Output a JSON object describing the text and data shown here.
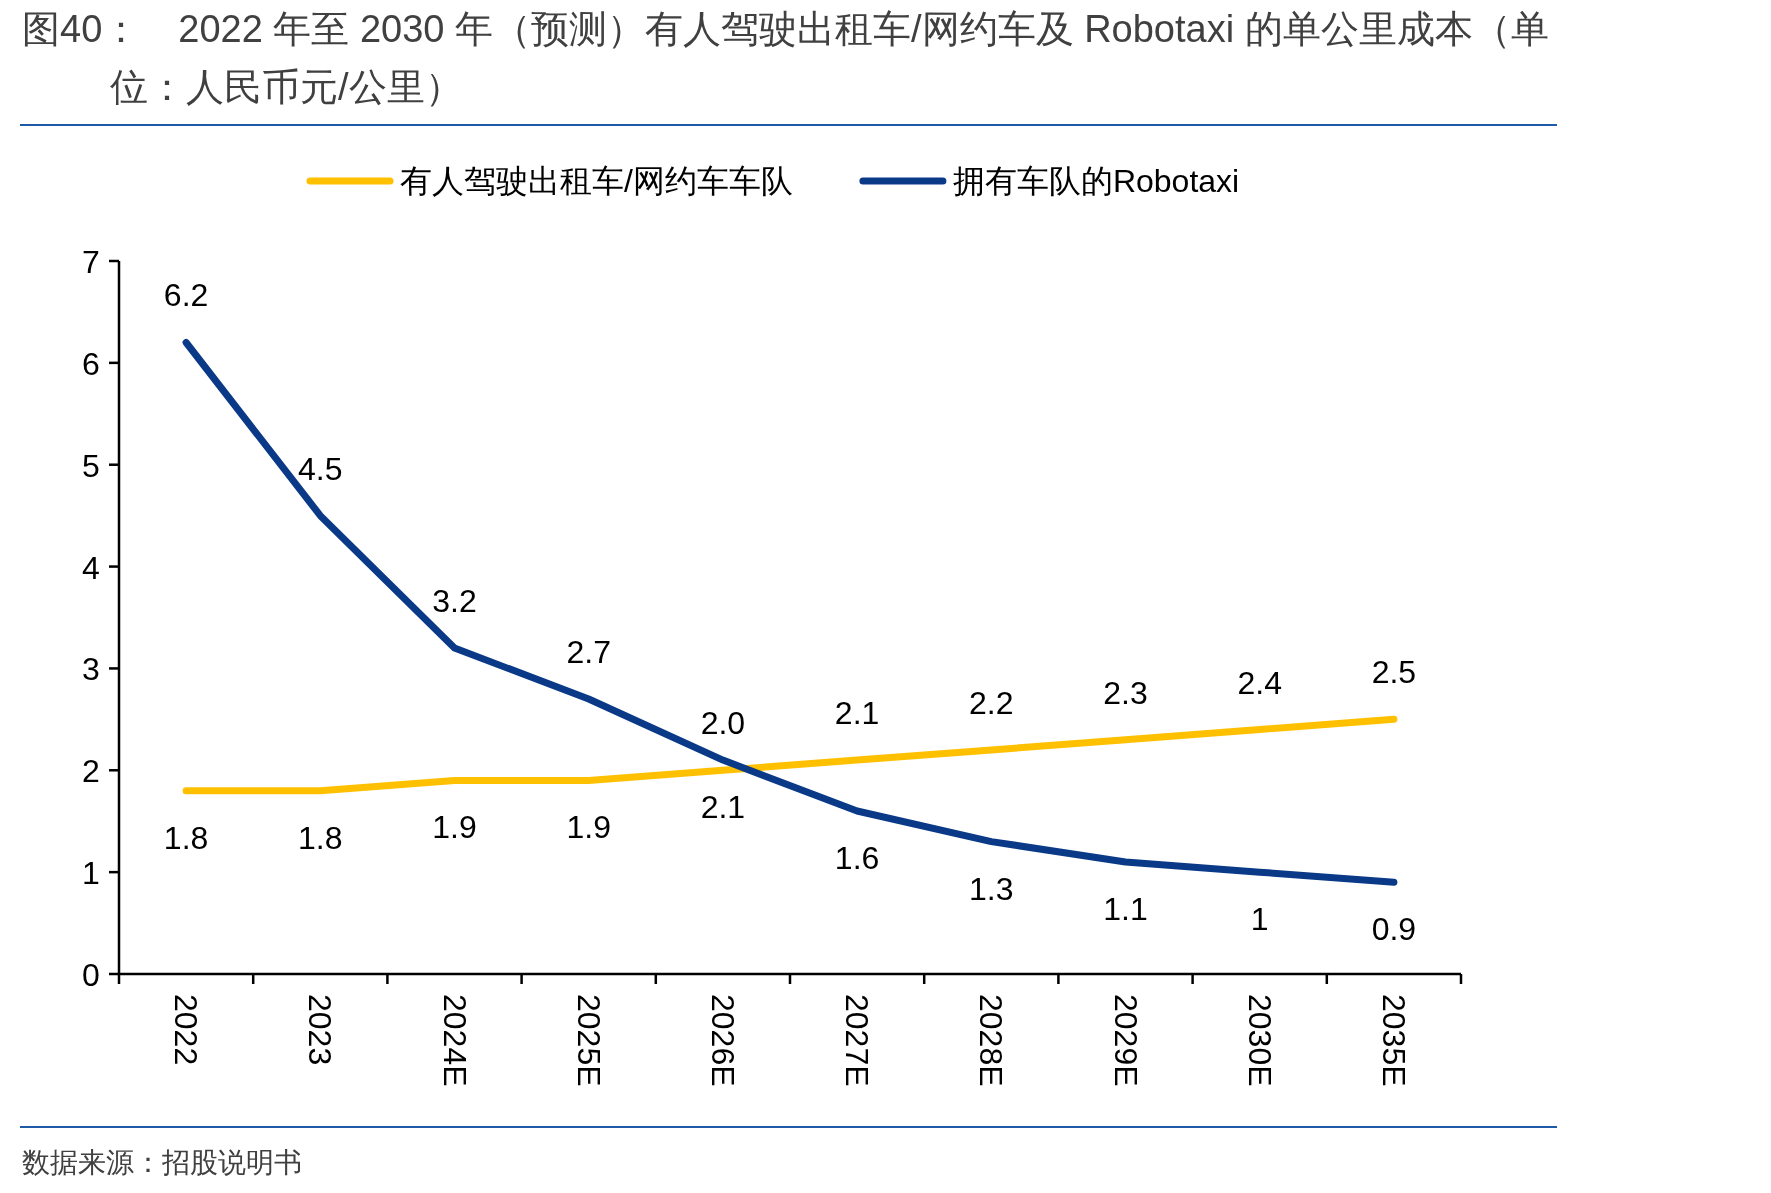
{
  "chart_data": {
    "type": "line",
    "title": "图40：　2022 年至 2030 年（预测）有人驾驶出租车/网约车及 Robotaxi 的单公里成本（单位：人民币元/公里）",
    "categories": [
      "2022",
      "2023",
      "2024E",
      "2025E",
      "2026E",
      "2027E",
      "2028E",
      "2029E",
      "2030E",
      "2035E"
    ],
    "series": [
      {
        "name": "有人驾驶出租车/网约车车队",
        "color": "#ffc000",
        "values": [
          1.8,
          1.8,
          1.9,
          1.9,
          2.0,
          2.1,
          2.2,
          2.3,
          2.4,
          2.5
        ],
        "value_labels": [
          "1.8",
          "1.8",
          "1.9",
          "1.9",
          "2.0",
          "2.1",
          "2.2",
          "2.3",
          "2.4",
          "2.5"
        ]
      },
      {
        "name": "拥有车队的Robotaxi",
        "color": "#0a3a87",
        "values": [
          6.2,
          4.5,
          3.2,
          2.7,
          2.1,
          1.6,
          1.3,
          1.1,
          1,
          0.9
        ],
        "value_labels": [
          "6.2",
          "4.5",
          "3.2",
          "2.7",
          "2.1",
          "1.6",
          "1.3",
          "1.1",
          "1",
          "0.9"
        ]
      }
    ],
    "ylim": [
      0,
      7
    ],
    "yticks": [
      0,
      1,
      2,
      3,
      4,
      5,
      6,
      7
    ],
    "grid": false,
    "legend": "top",
    "marker": "none",
    "line_style": "solid",
    "annotations": [
      "数据来源：招股说明书"
    ]
  }
}
